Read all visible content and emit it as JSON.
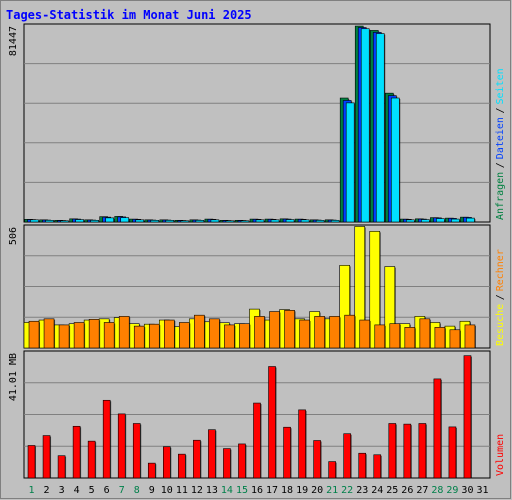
{
  "chart_data": {
    "type": "bar",
    "title": "Tages-Statistik im Monat Juni 2025",
    "categories": [
      "1",
      "2",
      "3",
      "4",
      "5",
      "6",
      "7",
      "8",
      "9",
      "10",
      "11",
      "12",
      "13",
      "14",
      "15",
      "16",
      "17",
      "18",
      "19",
      "20",
      "21",
      "22",
      "23",
      "24",
      "25",
      "26",
      "27",
      "28",
      "29",
      "30",
      "31"
    ],
    "weekend_days": [
      "1",
      "7",
      "8",
      "14",
      "15",
      "21",
      "22",
      "28",
      "29"
    ],
    "panels": [
      {
        "name": "requests",
        "max_label": "81447",
        "ylim": [
          0,
          81447
        ],
        "legend": [
          "Anfragen",
          "Dateien",
          "Seiten"
        ],
        "series": [
          {
            "name": "Anfragen",
            "color": "#008040",
            "values": [
              1100,
              900,
              700,
              1300,
              900,
              2200,
              2300,
              1200,
              900,
              900,
              700,
              900,
              1200,
              700,
              700,
              1200,
              1200,
              1300,
              1200,
              900,
              900,
              51000,
              80600,
              78800,
              53000,
              1200,
              1300,
              1800,
              1600,
              2000,
              0
            ]
          },
          {
            "name": "Dateien",
            "color": "#0040ff",
            "values": [
              1000,
              800,
              600,
              1200,
              800,
              2000,
              2100,
              1100,
              800,
              800,
              600,
              800,
              1100,
              600,
              600,
              1100,
              1100,
              1200,
              1100,
              800,
              800,
              50000,
              80000,
              78000,
              52000,
              1100,
              1200,
              1700,
              1500,
              1900,
              0
            ]
          },
          {
            "name": "Seiten",
            "color": "#00e0ff",
            "values": [
              900,
              700,
              500,
              1000,
              700,
              1700,
              1800,
              900,
              700,
              700,
              500,
              700,
              900,
              500,
              500,
              900,
              900,
              1000,
              900,
              700,
              700,
              49000,
              79500,
              77500,
              51000,
              900,
              1000,
              1400,
              1200,
              1600,
              0
            ]
          }
        ]
      },
      {
        "name": "visits",
        "max_label": "506",
        "ylim": [
          0,
          506
        ],
        "legend": [
          "Besuche",
          "Rechner"
        ],
        "series": [
          {
            "name": "Besuche",
            "color": "#ffff00",
            "values": [
              105,
              115,
              95,
              100,
              115,
              120,
              125,
              100,
              98,
              115,
              88,
              120,
              108,
              104,
              100,
              160,
              115,
              158,
              120,
              150,
              120,
              340,
              500,
              480,
              335,
              100,
              130,
              105,
              90,
              110,
              0
            ]
          },
          {
            "name": "Rechner",
            "color": "#ff8000",
            "values": [
              110,
              120,
              95,
              105,
              118,
              105,
              130,
              90,
              98,
              115,
              105,
              135,
              120,
              95,
              100,
              130,
              150,
              155,
              115,
              130,
              130,
              135,
              115,
              95,
              100,
              85,
              120,
              85,
              75,
              95,
              0
            ]
          }
        ]
      },
      {
        "name": "volume",
        "max_label": "41.01 MB",
        "ylim": [
          0,
          41.01
        ],
        "legend": [
          "Volumen"
        ],
        "series": [
          {
            "name": "Volumen",
            "color": "#ff0000",
            "values": [
              10.5,
              13.7,
              7.2,
              16.7,
              11.9,
              25.1,
              20.7,
              17.6,
              4.8,
              10.1,
              7.7,
              12.2,
              15.6,
              9.5,
              11.0,
              24.2,
              36.0,
              16.4,
              22.0,
              12.1,
              5.3,
              14.3,
              8.0,
              7.5,
              17.6,
              17.4,
              17.6,
              32.0,
              16.5,
              39.5,
              0
            ]
          }
        ]
      }
    ]
  }
}
